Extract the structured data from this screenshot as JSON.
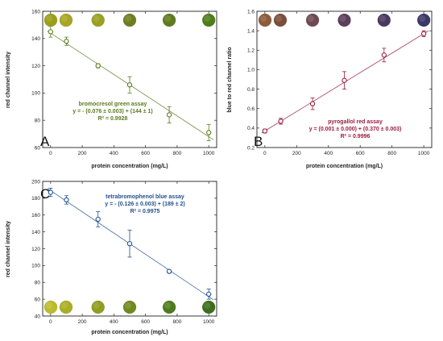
{
  "chart_data": [
    {
      "panel": "A",
      "type": "scatter",
      "xlabel": "protein concentration (mg/L)",
      "ylabel": "red channel intensity",
      "xlim": [
        -50,
        1050
      ],
      "ylim": [
        60,
        160
      ],
      "xticks": [
        0,
        200,
        400,
        600,
        800,
        1000
      ],
      "yticks": [
        60,
        80,
        100,
        120,
        140,
        160
      ],
      "x": [
        0,
        100,
        300,
        500,
        750,
        1000
      ],
      "y": [
        145,
        138,
        120,
        106,
        84,
        71
      ],
      "yerr": [
        4,
        3,
        1.5,
        6,
        6,
        6
      ],
      "fit": {
        "slope": -0.076,
        "intercept": 144
      },
      "color": "#5a7a1c",
      "marker_fill": "#ffffff",
      "assay": "bromocresol green assay",
      "equation": "y = - (0.076 ± 0.003) + (144 ± 1)",
      "r2": "R² = 0.9928",
      "annotation_align": "center",
      "swatch_row": "top",
      "swatch_colors": [
        "#9c9e18",
        "#a8a523",
        "#9aa01d",
        "#6e7e1f",
        "#5f7b1e",
        "#4f7d1a"
      ]
    },
    {
      "panel": "B",
      "type": "scatter",
      "xlabel": "protein concentration (mg/L)",
      "ylabel": "blue to red channel ratio",
      "xlim": [
        -50,
        1050
      ],
      "ylim": [
        0.2,
        1.6
      ],
      "xticks": [
        0,
        200,
        400,
        600,
        800,
        1000
      ],
      "yticks": [
        0.2,
        0.4,
        0.6,
        0.8,
        1.0,
        1.2,
        1.4,
        1.6
      ],
      "x": [
        0,
        100,
        300,
        500,
        750,
        1000
      ],
      "y": [
        0.37,
        0.47,
        0.65,
        0.89,
        1.15,
        1.37
      ],
      "yerr": [
        0.02,
        0.03,
        0.06,
        0.09,
        0.07,
        0.03
      ],
      "fit": {
        "slope": 0.001,
        "intercept": 0.37
      },
      "color": "#9b1b3c",
      "marker_fill": "#ffffff",
      "assay": "pyrogallol red assay",
      "equation": "y = (0.001 ± 0.000) + (0.370 ± 0.003)",
      "r2": "R² = 0.9996",
      "annotation_align": "center",
      "swatch_row": "top",
      "swatch_colors": [
        "#8d5a3a",
        "#7c4d3c",
        "#6e4a52",
        "#5c3f59",
        "#4b3a5f",
        "#3d3768"
      ]
    },
    {
      "panel": "C",
      "type": "scatter",
      "xlabel": "protein concentration (mg/L)",
      "ylabel": "red channel intensity",
      "xlim": [
        -50,
        1050
      ],
      "ylim": [
        40,
        200
      ],
      "xticks": [
        0,
        200,
        400,
        600,
        800,
        1000
      ],
      "yticks": [
        40,
        60,
        80,
        100,
        120,
        140,
        160,
        180,
        200
      ],
      "x": [
        0,
        100,
        300,
        500,
        750,
        1000
      ],
      "y": [
        187,
        178,
        155,
        126,
        93,
        66
      ],
      "yerr": [
        5,
        5,
        9,
        16,
        2,
        6
      ],
      "fit": {
        "slope": -0.126,
        "intercept": 189
      },
      "color": "#1f4f8f",
      "marker_fill": "#ffffff",
      "assay": "tetrabromophenol blue assay",
      "equation": "y = - (0.126 ± 0.003) + (189 ± 2)",
      "r2": "R² = 0.9975",
      "annotation_align": "center",
      "swatch_row": "bottom",
      "swatch_colors": [
        "#bcbb2a",
        "#aaae22",
        "#8f9e1f",
        "#6f8a1d",
        "#4f7b1f",
        "#3c6e1c"
      ]
    }
  ]
}
